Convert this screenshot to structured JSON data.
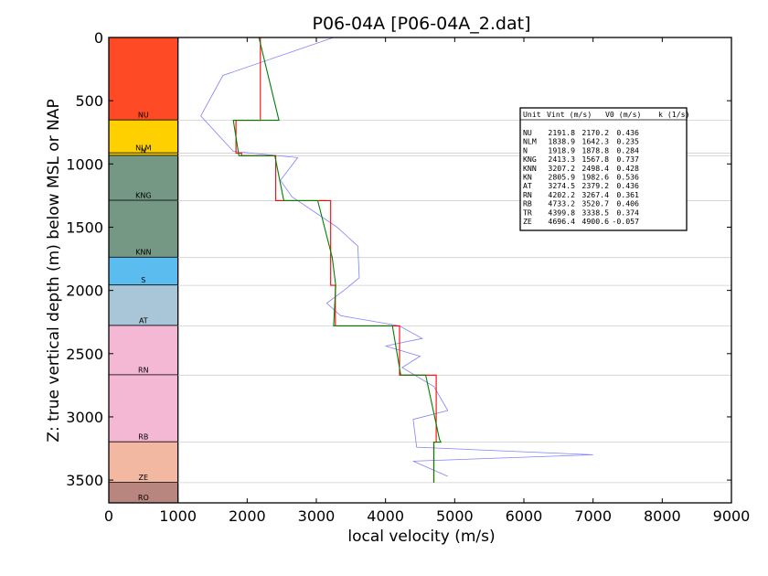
{
  "chart_data": {
    "type": "line",
    "title": "P06-04A [P06-04A_2.dat]",
    "xlabel": "local velocity (m/s)",
    "ylabel": "Z: true vertical depth (m) below MSL or NAP",
    "xlim": [
      0,
      9000
    ],
    "ylim": [
      3680,
      0
    ],
    "xticks": [
      "0",
      "1000",
      "2000",
      "3000",
      "4000",
      "5000",
      "6000",
      "7000",
      "8000",
      "9000"
    ],
    "yticks": [
      "0",
      "500",
      "1000",
      "1500",
      "2000",
      "2500",
      "3000",
      "3500"
    ],
    "grid": "horizontal lines at unit boundaries",
    "units": [
      {
        "name": "NU",
        "top": 0,
        "base": 655,
        "color": "#ff4a26",
        "label": "NU"
      },
      {
        "name": "NLM",
        "top": 655,
        "base": 915,
        "color": "#ffd000",
        "label": "NLM"
      },
      {
        "name": "N",
        "top": 915,
        "base": 935,
        "color": "#ffd000",
        "label": "N"
      },
      {
        "name": "KNG",
        "top": 935,
        "base": 1290,
        "color": "#749884",
        "label": "KNG"
      },
      {
        "name": "KNN",
        "top": 1290,
        "base": 1740,
        "color": "#749884",
        "label": "KNN"
      },
      {
        "name": "S",
        "top": 1740,
        "base": 1960,
        "color": "#5bbcf0",
        "label": "S"
      },
      {
        "name": "AT",
        "top": 1960,
        "base": 2280,
        "color": "#a9c6d9",
        "label": "AT"
      },
      {
        "name": "RN",
        "top": 2280,
        "base": 2670,
        "color": "#f4b8d4",
        "label": "RN"
      },
      {
        "name": "RB",
        "top": 2670,
        "base": 3200,
        "color": "#f4b8d4",
        "label": "RB"
      },
      {
        "name": "ZE",
        "top": 3200,
        "base": 3520,
        "color": "#f2b8a2",
        "label": "ZE"
      },
      {
        "name": "RO",
        "top": 3520,
        "base": 3680,
        "color": "#b8857f",
        "label": "RO"
      }
    ],
    "series": [
      {
        "color": "#8080ff",
        "x": [
          3250,
          1650,
          1330,
          1800,
          2730,
          2480,
          2650,
          3300,
          3600,
          3620,
          3400,
          3150,
          3350,
          4200,
          4530,
          4000,
          4500,
          4240,
          4700,
          4900,
          4400,
          4450,
          7000,
          4400,
          4900
        ],
        "y": [
          0,
          300,
          620,
          900,
          950,
          1130,
          1260,
          1500,
          1650,
          1900,
          2000,
          2100,
          2200,
          2280,
          2380,
          2440,
          2520,
          2610,
          2760,
          2950,
          3020,
          3240,
          3300,
          3350,
          3470
        ]
      },
      {
        "color": "#ff0000",
        "x": [
          2191.8,
          2191.8,
          1838.9,
          1838.9,
          1918.9,
          1918.9,
          2413.3,
          2413.3,
          3207.2,
          3207.2,
          3274.5,
          3274.5,
          4202.2,
          4202.2,
          4733.2,
          4733.2,
          4696.4,
          4696.4
        ],
        "y": [
          0,
          655,
          655,
          915,
          915,
          935,
          935,
          1290,
          1290,
          1960,
          1960,
          2280,
          2280,
          2670,
          2670,
          3200,
          3200,
          3520
        ]
      },
      {
        "color": "#008000",
        "x": [
          2170,
          2460,
          1800,
          1880,
          2400,
          2530,
          3020,
          3230,
          3280,
          3250,
          4100,
          4220,
          4580,
          4780,
          4800,
          4700,
          4700
        ],
        "y": [
          0,
          655,
          655,
          935,
          935,
          1290,
          1290,
          1740,
          1960,
          2280,
          2280,
          2670,
          2670,
          3180,
          3200,
          3200,
          3520
        ]
      }
    ],
    "legend": {
      "placement": "right",
      "header": [
        "Unit",
        "Vint (m/s)",
        "V0 (m/s)",
        "k (1/s)"
      ],
      "rows": [
        [
          "NU",
          "2191.8",
          "2170.2",
          "0.436"
        ],
        [
          "NLM",
          "1838.9",
          "1642.3",
          "0.235"
        ],
        [
          "N",
          "1918.9",
          "1878.8",
          "0.284"
        ],
        [
          "KNG",
          "2413.3",
          "1567.8",
          "0.737"
        ],
        [
          "KNN",
          "3207.2",
          "2498.4",
          "0.428"
        ],
        [
          "KN",
          "2805.9",
          "1982.6",
          "0.536"
        ],
        [
          "AT",
          "3274.5",
          "2379.2",
          "0.436"
        ],
        [
          "RN",
          "4202.2",
          "3267.4",
          "0.361"
        ],
        [
          "RB",
          "4733.2",
          "3520.7",
          "0.406"
        ],
        [
          "TR",
          "4399.8",
          "3338.5",
          "0.374"
        ],
        [
          "ZE",
          "4696.4",
          "4900.6",
          "-0.057"
        ]
      ]
    }
  }
}
